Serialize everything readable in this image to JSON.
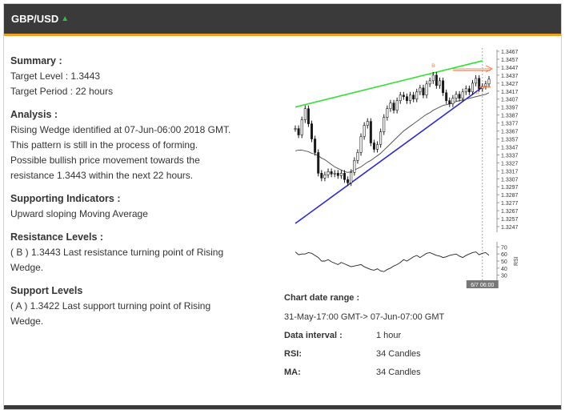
{
  "header": {
    "title": "GBP/USD",
    "arrow": "▲"
  },
  "summary": {
    "heading": "Summary :",
    "target_level": "Target Level : 1.3443",
    "target_period": "Target Period : 22 hours"
  },
  "analysis": {
    "heading": "Analysis :",
    "text": "Rising Wedge identified at 07-Jun-06:00 2018 GMT. This pattern is still in the process of forming. Possible bullish price movement towards the resistance 1.3443 within the next 22 hours."
  },
  "indicators": {
    "heading": "Supporting Indicators :",
    "text": "Upward sloping Moving Average"
  },
  "resistance": {
    "heading": "Resistance Levels :",
    "text": "( B ) 1.3443 Last resistance turning point of Rising Wedge."
  },
  "support": {
    "heading": "Support Levels",
    "text": "( A ) 1.3422 Last support turning point of Rising Wedge."
  },
  "chart_info": {
    "range_label": "Chart date range :",
    "range_value": "31-May-17:00 GMT-> 07-Jun-07:00 GMT",
    "interval_label": "Data interval :",
    "interval_value": "1 hour",
    "rsi_label": "RSI:",
    "rsi_value": "34 Candles",
    "ma_label": "MA:",
    "ma_value": "34 Candles"
  },
  "chart_data": {
    "type": "line",
    "price_ticks": [
      "1.3467",
      "1.3457",
      "1.3447",
      "1.3437",
      "1.3427",
      "1.3417",
      "1.3407",
      "1.3397",
      "1.3387",
      "1.3377",
      "1.3367",
      "1.3357",
      "1.3347",
      "1.3337",
      "1.3327",
      "1.3317",
      "1.3307",
      "1.3297",
      "1.3287",
      "1.3277",
      "1.3267",
      "1.3257",
      "1.3247"
    ],
    "rsi_ticks": [
      "70",
      "60",
      "50",
      "40",
      "30"
    ],
    "rsi_axis_label": "RSI",
    "time_label": "6/7 06:00",
    "ylim": [
      1.3242,
      1.3467
    ],
    "point_labels": {
      "a": "A",
      "b": "B"
    },
    "price": [
      1.337,
      1.3362,
      1.3381,
      1.3395,
      1.3376,
      1.3357,
      1.334,
      1.3314,
      1.3308,
      1.3312,
      1.3316,
      1.3313,
      1.3314,
      1.3311,
      1.3314,
      1.3306,
      1.3302,
      1.3315,
      1.333,
      1.334,
      1.336,
      1.3374,
      1.3379,
      1.3352,
      1.3344,
      1.335,
      1.3366,
      1.3384,
      1.3395,
      1.3402,
      1.3393,
      1.3405,
      1.3412,
      1.341,
      1.3405,
      1.3412,
      1.3407,
      1.3416,
      1.3421,
      1.3412,
      1.3426,
      1.343,
      1.3437,
      1.3424,
      1.343,
      1.3415,
      1.3405,
      1.3401,
      1.3408,
      1.3413,
      1.3408,
      1.3416,
      1.342,
      1.3416,
      1.3427,
      1.3433,
      1.342,
      1.3423,
      1.3426,
      1.3432
    ],
    "ma": [
      1.3342,
      1.3343,
      1.3343,
      1.3342,
      1.3341,
      1.3339,
      1.3338,
      1.3336,
      1.3333,
      1.3331,
      1.3328,
      1.3325,
      1.3322,
      1.332,
      1.3318,
      1.3316,
      1.3315,
      1.3316,
      1.3318,
      1.332,
      1.3322,
      1.3325,
      1.3328,
      1.333,
      1.3333,
      1.3336,
      1.3339,
      1.3343,
      1.3347,
      1.3351,
      1.3355,
      1.3359,
      1.3363,
      1.3367,
      1.337,
      1.3373,
      1.3376,
      1.3379,
      1.3382,
      1.3385,
      1.3388,
      1.339,
      1.3393,
      1.3395,
      1.3397,
      1.3399,
      1.34,
      1.3401,
      1.3402,
      1.3404,
      1.3405,
      1.3406,
      1.3407,
      1.3408,
      1.3409,
      1.341,
      1.3411,
      1.3412,
      1.3413,
      1.3415
    ],
    "rsi": [
      63,
      59,
      60,
      60,
      62,
      61,
      58,
      55,
      50,
      50,
      52,
      49,
      47,
      45,
      48,
      46,
      44,
      42,
      43,
      44,
      45,
      42,
      40,
      38,
      37,
      39,
      36,
      35,
      38,
      40,
      43,
      45,
      48,
      52,
      50,
      53,
      56,
      58,
      55,
      58,
      61,
      62,
      60,
      58,
      57,
      55,
      56,
      58,
      59,
      60,
      57,
      55,
      58,
      60,
      62,
      63,
      59,
      61,
      62,
      58
    ],
    "resistance_line": [
      [
        0,
        1.3397
      ],
      [
        57,
        1.3455
      ]
    ],
    "support_line": [
      [
        0,
        1.3251
      ],
      [
        57,
        1.3422
      ]
    ],
    "target_level": 1.3443,
    "support_level": 1.3422,
    "colors": {
      "resistance": "#33e033",
      "support": "#2a2ad8",
      "target": "#ff7a40",
      "price": "#1a1a1a",
      "ma": "#555555"
    }
  }
}
